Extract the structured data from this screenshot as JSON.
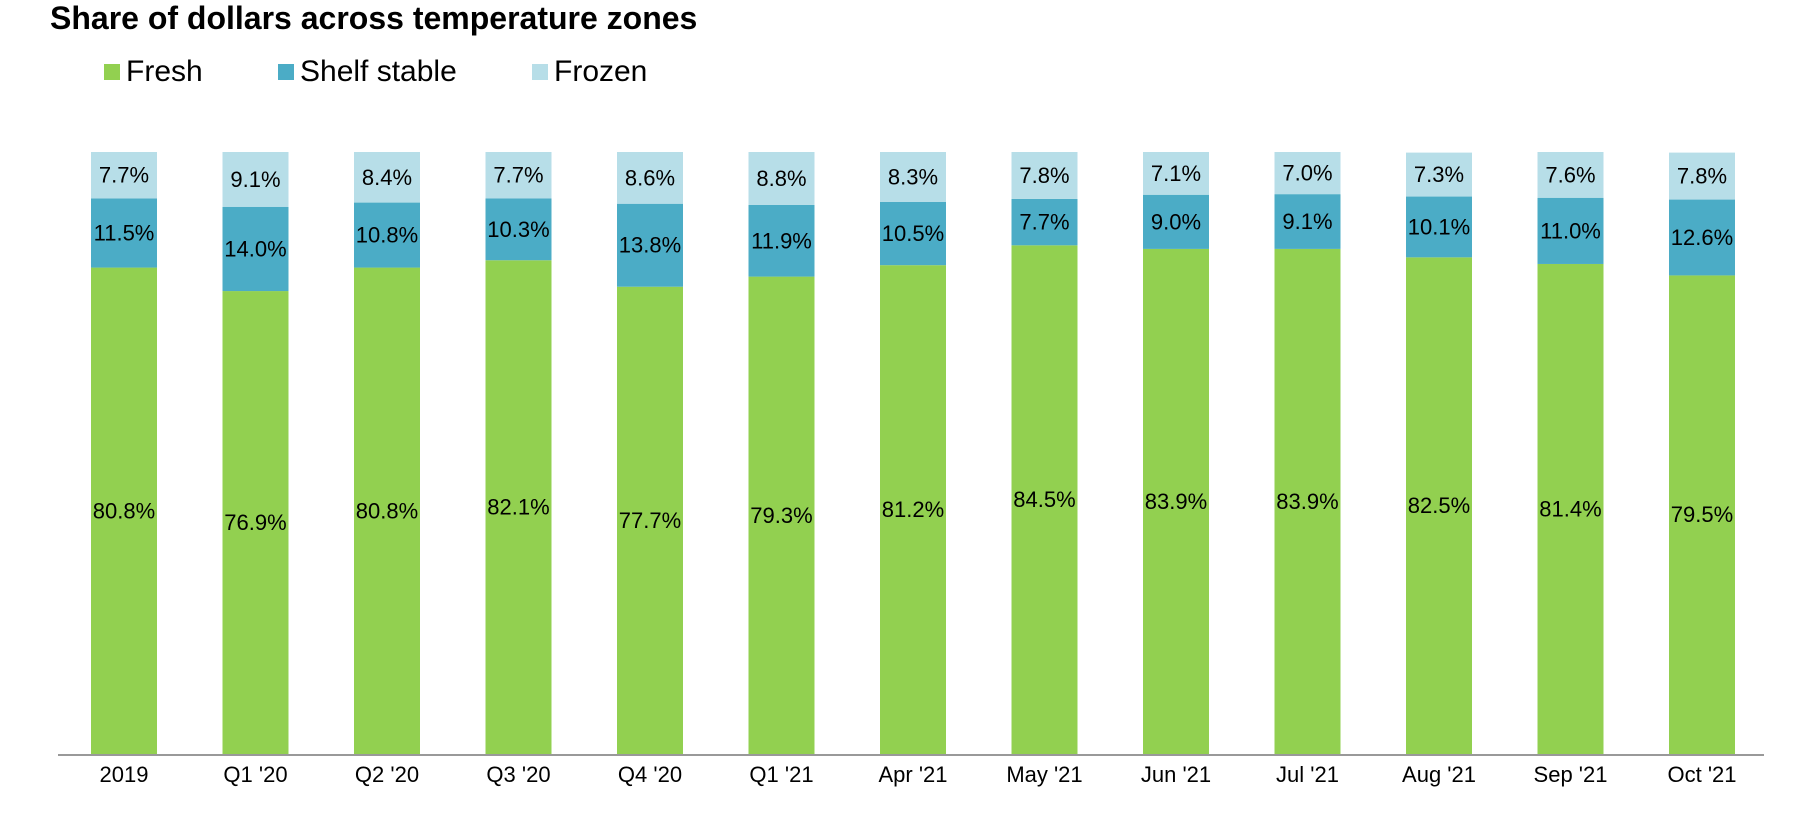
{
  "chart_data": {
    "type": "bar",
    "stacked": true,
    "title": "Share of dollars across temperature zones",
    "xlabel": "",
    "ylabel": "",
    "ylim": [
      0,
      100
    ],
    "grid": false,
    "legend_position": "top-left",
    "categories": [
      "2019",
      "Q1 '20",
      "Q2 '20",
      "Q3 '20",
      "Q4 '20",
      "Q1 '21",
      "Apr '21",
      "May '21",
      "Jun '21",
      "Jul '21",
      "Aug '21",
      "Sep '21",
      "Oct '21"
    ],
    "series": [
      {
        "name": "Fresh",
        "color": "#92d050",
        "values": [
          80.8,
          76.9,
          80.8,
          82.1,
          77.7,
          79.3,
          81.2,
          84.5,
          83.9,
          83.9,
          82.5,
          81.4,
          79.5
        ],
        "labels": [
          "80.8%",
          "76.9%",
          "80.8%",
          "82.1%",
          "77.7%",
          "79.3%",
          "81.2%",
          "84.5%",
          "83.9%",
          "83.9%",
          "82.5%",
          "81.4%",
          "79.5%"
        ]
      },
      {
        "name": "Shelf stable",
        "color": "#4bacc6",
        "values": [
          11.5,
          14.0,
          10.8,
          10.3,
          13.8,
          11.9,
          10.5,
          7.7,
          9.0,
          9.1,
          10.1,
          11.0,
          12.6
        ],
        "labels": [
          "11.5%",
          "14.0%",
          "10.8%",
          "10.3%",
          "13.8%",
          "11.9%",
          "10.5%",
          "7.7%",
          "9.0%",
          "9.1%",
          "10.1%",
          "11.0%",
          "12.6%"
        ]
      },
      {
        "name": "Frozen",
        "color": "#b7dee8",
        "values": [
          7.7,
          9.1,
          8.4,
          7.7,
          8.6,
          8.8,
          8.3,
          7.8,
          7.1,
          7.0,
          7.3,
          7.6,
          7.8
        ],
        "labels": [
          "7.7%",
          "9.1%",
          "8.4%",
          "7.7%",
          "8.6%",
          "8.8%",
          "8.3%",
          "7.8%",
          "7.1%",
          "7.0%",
          "7.3%",
          "7.6%",
          "7.8%"
        ]
      }
    ],
    "axis_color": "#999999"
  }
}
